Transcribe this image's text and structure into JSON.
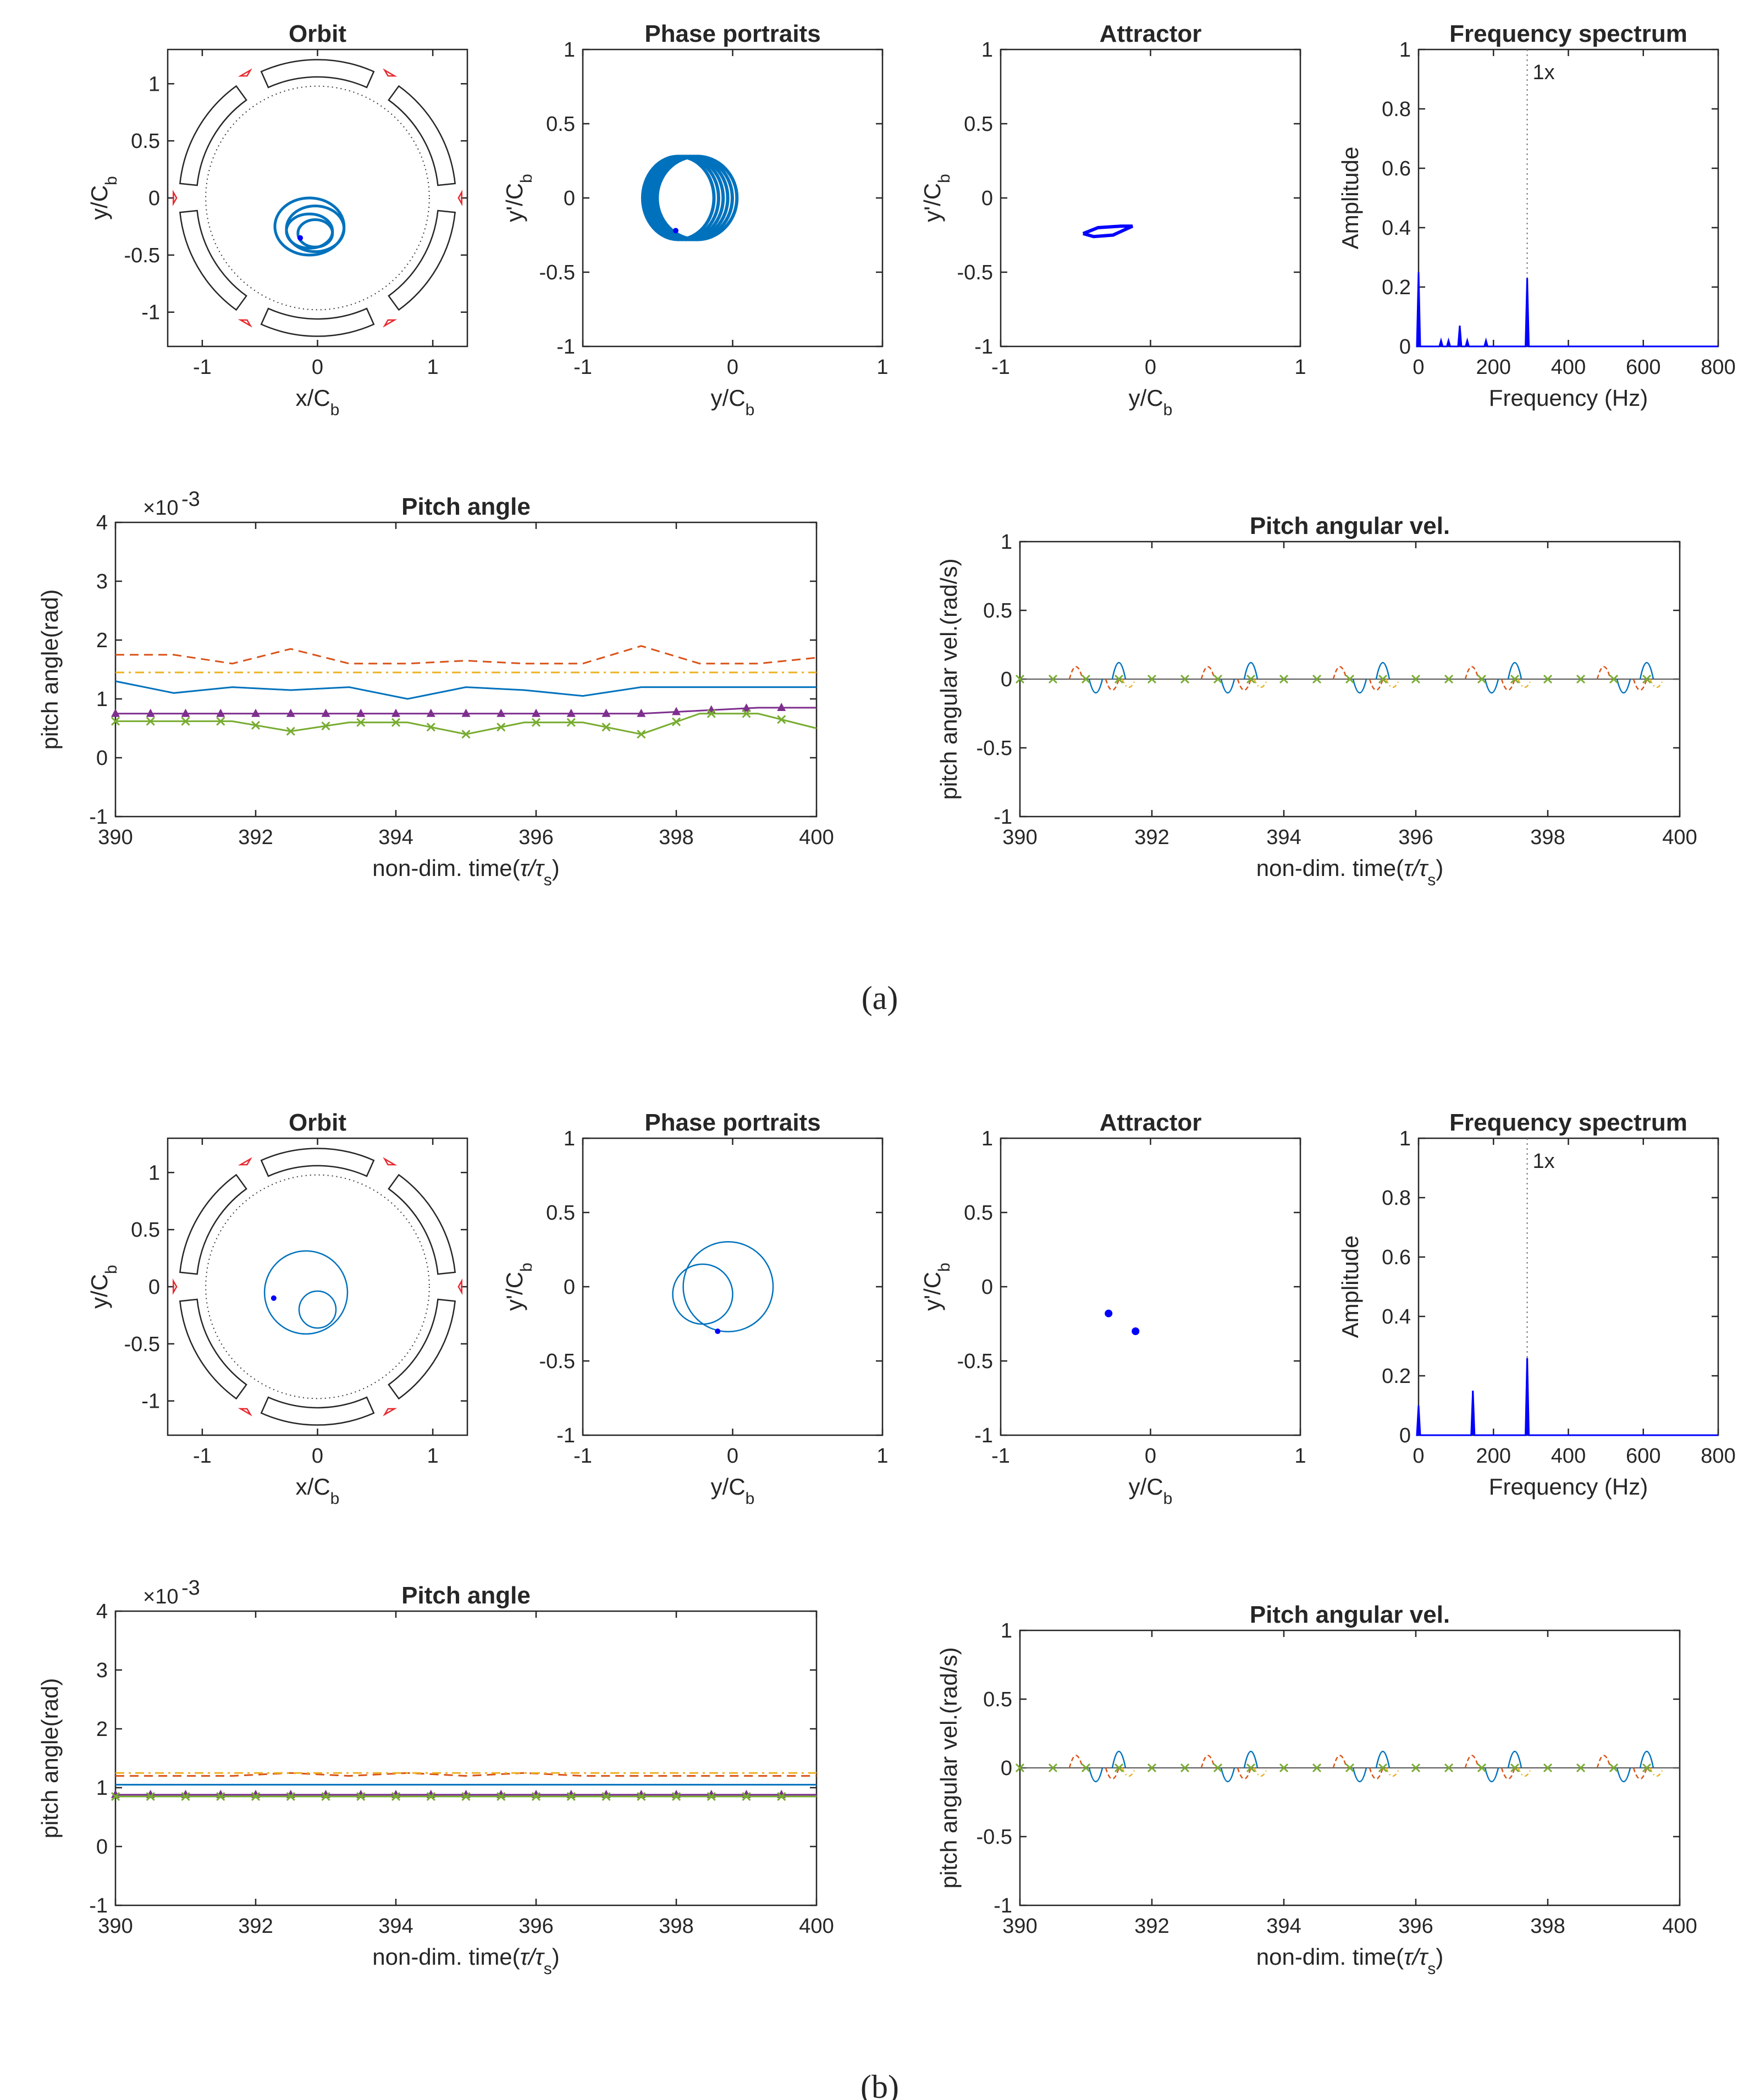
{
  "figure": {
    "panels": [
      {
        "label": "(a)",
        "orbit": {
          "title": "Orbit",
          "xlabel": "x/C",
          "xsub": "b",
          "ylabel": "y/C",
          "ysub": "b",
          "xlim": [
            -1.3,
            1.3
          ],
          "ylim": [
            -1.3,
            1.3
          ],
          "xticks": [
            "-1",
            "0",
            "1"
          ],
          "yticks": [
            "-1",
            "-0.5",
            "0",
            "0.5",
            "1"
          ],
          "orbit_center": [
            -0.05,
            -0.25
          ],
          "rings": [
            [
              0.3,
              0.25
            ],
            [
              0.25,
              0.2
            ],
            [
              0.2,
              0.15
            ],
            [
              0.15,
              0.12
            ]
          ],
          "end_point": [
            -0.15,
            -0.35
          ]
        },
        "phase": {
          "title": "Phase portraits",
          "xlabel": "y/C",
          "xsub": "b",
          "ylabel": "y'/C",
          "ysub": "b",
          "xlim": [
            -1,
            1
          ],
          "ylim": [
            -1,
            1
          ],
          "xticks": [
            "-1",
            "0",
            "1"
          ],
          "yticks": [
            "-1",
            "-0.5",
            "0",
            "0.5",
            "1"
          ],
          "loop_center": [
            -0.3,
            0.0
          ],
          "loop_radius": [
            0.28,
            0.28
          ],
          "end_point": [
            -0.38,
            -0.22
          ]
        },
        "attractor": {
          "title": "Attractor",
          "xlabel": "y/C",
          "xsub": "b",
          "ylabel": "y'/C",
          "ysub": "b",
          "xlim": [
            -1,
            1
          ],
          "ylim": [
            -1,
            1
          ],
          "xticks": [
            "-1",
            "0",
            "1"
          ],
          "yticks": [
            "-1",
            "-0.5",
            "0",
            "0.5",
            "1"
          ],
          "points": [
            [
              -0.45,
              -0.24
            ],
            [
              -0.35,
              -0.2
            ],
            [
              -0.2,
              -0.19
            ],
            [
              -0.12,
              -0.19
            ],
            [
              -0.25,
              -0.25
            ],
            [
              -0.38,
              -0.26
            ],
            [
              -0.45,
              -0.24
            ]
          ]
        },
        "spectrum": {
          "title": "Frequency spectrum",
          "xlabel": "Frequency (Hz)",
          "ylabel": "Amplitude",
          "xlim": [
            0,
            800
          ],
          "ylim": [
            0,
            1
          ],
          "xticks": [
            "0",
            "200",
            "400",
            "600",
            "800"
          ],
          "yticks": [
            "0",
            "0.2",
            "0.4",
            "0.6",
            "0.8",
            "1"
          ],
          "peaks": [
            [
              0,
              0.25
            ],
            [
              60,
              0.02
            ],
            [
              80,
              0.02
            ],
            [
              110,
              0.07
            ],
            [
              130,
              0.02
            ],
            [
              180,
              0.02
            ],
            [
              290,
              0.23
            ]
          ],
          "harmonic_x": 290,
          "harmonic_label": "1x"
        },
        "pitch": {
          "title": "Pitch angle",
          "xlabel": "non-dim. time(",
          "xsub": "s",
          "ylabel": "pitch angle(rad)",
          "exponent_base": "×10",
          "exponent": "-3",
          "xlim": [
            390,
            400
          ],
          "ylim": [
            -1,
            4
          ],
          "xticks": [
            "390",
            "392",
            "394",
            "396",
            "398",
            "400"
          ],
          "yticks": [
            "-1",
            "0",
            "1",
            "2",
            "3",
            "4"
          ],
          "series": [
            {
              "name": "orange-dashed",
              "color": "#D95319",
              "dash": "dash",
              "values": [
                1.75,
                1.75,
                1.6,
                1.85,
                1.6,
                1.6,
                1.65,
                1.6,
                1.6,
                1.9,
                1.6,
                1.6,
                1.7
              ]
            },
            {
              "name": "yellow-dashdot",
              "color": "#EDB120",
              "dash": "dashdot",
              "values": [
                1.45,
                1.45,
                1.45,
                1.45,
                1.45,
                1.45,
                1.45,
                1.45,
                1.45,
                1.45,
                1.45,
                1.45,
                1.45
              ]
            },
            {
              "name": "blue",
              "color": "#0072BD",
              "dash": "solid",
              "values": [
                1.3,
                1.1,
                1.2,
                1.15,
                1.2,
                1.0,
                1.2,
                1.15,
                1.05,
                1.2,
                1.2,
                1.2,
                1.2
              ]
            },
            {
              "name": "purple",
              "color": "#7E2F8E",
              "dash": "solid",
              "marker": "tri",
              "values": [
                0.75,
                0.75,
                0.75,
                0.75,
                0.75,
                0.75,
                0.75,
                0.75,
                0.75,
                0.75,
                0.8,
                0.85,
                0.85
              ]
            },
            {
              "name": "green",
              "color": "#77AC30",
              "dash": "solid",
              "marker": "x",
              "values": [
                0.62,
                0.62,
                0.62,
                0.45,
                0.6,
                0.6,
                0.4,
                0.6,
                0.6,
                0.4,
                0.75,
                0.75,
                0.5
              ]
            }
          ]
        },
        "angvel": {
          "title": "Pitch angular vel.",
          "xlabel": "non-dim. time(",
          "xsub": "s",
          "ylabel": "pitch angular vel.(rad/s)",
          "xlim": [
            390,
            400
          ],
          "ylim": [
            -1,
            1
          ],
          "xticks": [
            "390",
            "392",
            "394",
            "396",
            "398",
            "400"
          ],
          "yticks": [
            "-1",
            "-0.5",
            "0",
            "0.5",
            "1"
          ],
          "spike_times": [
            391.5,
            393.5,
            395.5,
            397.5,
            399.5
          ],
          "amp_pos": 0.12,
          "amp_neg": -0.2
        }
      },
      {
        "label": "(b)",
        "orbit": {
          "title": "Orbit",
          "xlabel": "x/C",
          "xsub": "b",
          "ylabel": "y/C",
          "ysub": "b",
          "xlim": [
            -1.3,
            1.3
          ],
          "ylim": [
            -1.3,
            1.3
          ],
          "xticks": [
            "-1",
            "0",
            "1"
          ],
          "yticks": [
            "-1",
            "-0.5",
            "0",
            "0.5",
            "1"
          ],
          "big_circle": [
            -0.1,
            -0.05,
            0.36
          ],
          "small_circle": [
            0.0,
            -0.2,
            0.16
          ],
          "end_point": [
            -0.38,
            -0.1
          ]
        },
        "phase": {
          "title": "Phase portraits",
          "xlabel": "y/C",
          "xsub": "b",
          "ylabel": "y'/C",
          "ysub": "b",
          "xlim": [
            -1,
            1
          ],
          "ylim": [
            -1,
            1
          ],
          "xticks": [
            "-1",
            "0",
            "1"
          ],
          "yticks": [
            "-1",
            "-0.5",
            "0",
            "0.5",
            "1"
          ],
          "big_circle": [
            -0.03,
            0.0,
            0.3
          ],
          "small_circle": [
            -0.2,
            -0.05,
            0.2
          ],
          "end_point": [
            -0.1,
            -0.3
          ]
        },
        "attractor": {
          "title": "Attractor",
          "xlabel": "y/C",
          "xsub": "b",
          "ylabel": "y'/C",
          "ysub": "b",
          "xlim": [
            -1,
            1
          ],
          "ylim": [
            -1,
            1
          ],
          "xticks": [
            "-1",
            "0",
            "1"
          ],
          "yticks": [
            "-1",
            "-0.5",
            "0",
            "0.5",
            "1"
          ],
          "dots": [
            [
              -0.28,
              -0.18
            ],
            [
              -0.1,
              -0.3
            ]
          ]
        },
        "spectrum": {
          "title": "Frequency spectrum",
          "xlabel": "Frequency (Hz)",
          "ylabel": "Amplitude",
          "xlim": [
            0,
            800
          ],
          "ylim": [
            0,
            1
          ],
          "xticks": [
            "0",
            "200",
            "400",
            "600",
            "800"
          ],
          "yticks": [
            "0",
            "0.2",
            "0.4",
            "0.6",
            "0.8",
            "1"
          ],
          "peaks": [
            [
              0,
              0.1
            ],
            [
              145,
              0.15
            ],
            [
              290,
              0.26
            ]
          ],
          "harmonic_x": 290,
          "harmonic_label": "1x"
        },
        "pitch": {
          "title": "Pitch angle",
          "xlabel": "non-dim. time(",
          "xsub": "s",
          "ylabel": "pitch angle(rad)",
          "exponent_base": "×10",
          "exponent": "-3",
          "xlim": [
            390,
            400
          ],
          "ylim": [
            -1,
            4
          ],
          "xticks": [
            "390",
            "392",
            "394",
            "396",
            "398",
            "400"
          ],
          "yticks": [
            "-1",
            "0",
            "1",
            "2",
            "3",
            "4"
          ],
          "series": [
            {
              "name": "orange-dashed",
              "color": "#D95319",
              "dash": "dash",
              "values": [
                1.2,
                1.2,
                1.2,
                1.25,
                1.2,
                1.25,
                1.2,
                1.25,
                1.2,
                1.2,
                1.2,
                1.2,
                1.2
              ]
            },
            {
              "name": "yellow-dashdot",
              "color": "#EDB120",
              "dash": "dashdot",
              "values": [
                1.25,
                1.25,
                1.25,
                1.25,
                1.25,
                1.25,
                1.25,
                1.25,
                1.25,
                1.25,
                1.25,
                1.25,
                1.25
              ]
            },
            {
              "name": "blue",
              "color": "#0072BD",
              "dash": "solid",
              "values": [
                1.05,
                1.05,
                1.05,
                1.05,
                1.05,
                1.05,
                1.05,
                1.05,
                1.05,
                1.05,
                1.05,
                1.05,
                1.05
              ]
            },
            {
              "name": "purple",
              "color": "#7E2F8E",
              "dash": "solid",
              "marker": "tri",
              "values": [
                0.88,
                0.88,
                0.88,
                0.88,
                0.88,
                0.88,
                0.88,
                0.88,
                0.88,
                0.88,
                0.88,
                0.88,
                0.88
              ]
            },
            {
              "name": "green",
              "color": "#77AC30",
              "dash": "solid",
              "marker": "x",
              "values": [
                0.85,
                0.85,
                0.85,
                0.85,
                0.85,
                0.85,
                0.85,
                0.85,
                0.85,
                0.85,
                0.85,
                0.85,
                0.85
              ]
            }
          ]
        },
        "angvel": {
          "title": "Pitch angular vel.",
          "xlabel": "non-dim. time(",
          "xsub": "s",
          "ylabel": "pitch angular vel.(rad/s)",
          "xlim": [
            390,
            400
          ],
          "ylim": [
            -1,
            1
          ],
          "xticks": [
            "390",
            "392",
            "394",
            "396",
            "398",
            "400"
          ],
          "yticks": [
            "-1",
            "-0.5",
            "0",
            "0.5",
            "1"
          ],
          "spike_times": [
            391.5,
            393.5,
            395.5,
            397.5,
            399.5
          ],
          "amp_pos": 0.12,
          "amp_neg": -0.2
        }
      }
    ]
  },
  "chart_data": [
    {
      "type": "line",
      "panel": "(a)",
      "title": "Pitch angle",
      "xlabel": "non-dim. time(τ/τs)",
      "ylabel": "pitch angle(rad)",
      "ylim": [
        -1,
        4
      ],
      "xlim": [
        390,
        400
      ]
    },
    {
      "type": "line",
      "panel": "(a)",
      "title": "Pitch angular vel.",
      "xlabel": "non-dim. time(τ/τs)",
      "ylabel": "pitch angular vel.(rad/s)",
      "ylim": [
        -1,
        1
      ],
      "xlim": [
        390,
        400
      ]
    },
    {
      "type": "bar",
      "panel": "(a)",
      "title": "Frequency spectrum",
      "xlabel": "Frequency (Hz)",
      "ylabel": "Amplitude",
      "x": [
        0,
        110,
        290
      ],
      "values": [
        0.25,
        0.07,
        0.23
      ]
    },
    {
      "type": "line",
      "panel": "(b)",
      "title": "Pitch angle",
      "xlabel": "non-dim. time(τ/τs)",
      "ylabel": "pitch angle(rad)",
      "ylim": [
        -1,
        4
      ],
      "xlim": [
        390,
        400
      ]
    },
    {
      "type": "line",
      "panel": "(b)",
      "title": "Pitch angular vel.",
      "xlabel": "non-dim. time(τ/τs)",
      "ylabel": "pitch angular vel.(rad/s)",
      "ylim": [
        -1,
        1
      ],
      "xlim": [
        390,
        400
      ]
    },
    {
      "type": "bar",
      "panel": "(b)",
      "title": "Frequency spectrum",
      "xlabel": "Frequency (Hz)",
      "ylabel": "Amplitude",
      "x": [
        0,
        145,
        290
      ],
      "values": [
        0.1,
        0.15,
        0.26
      ]
    }
  ]
}
